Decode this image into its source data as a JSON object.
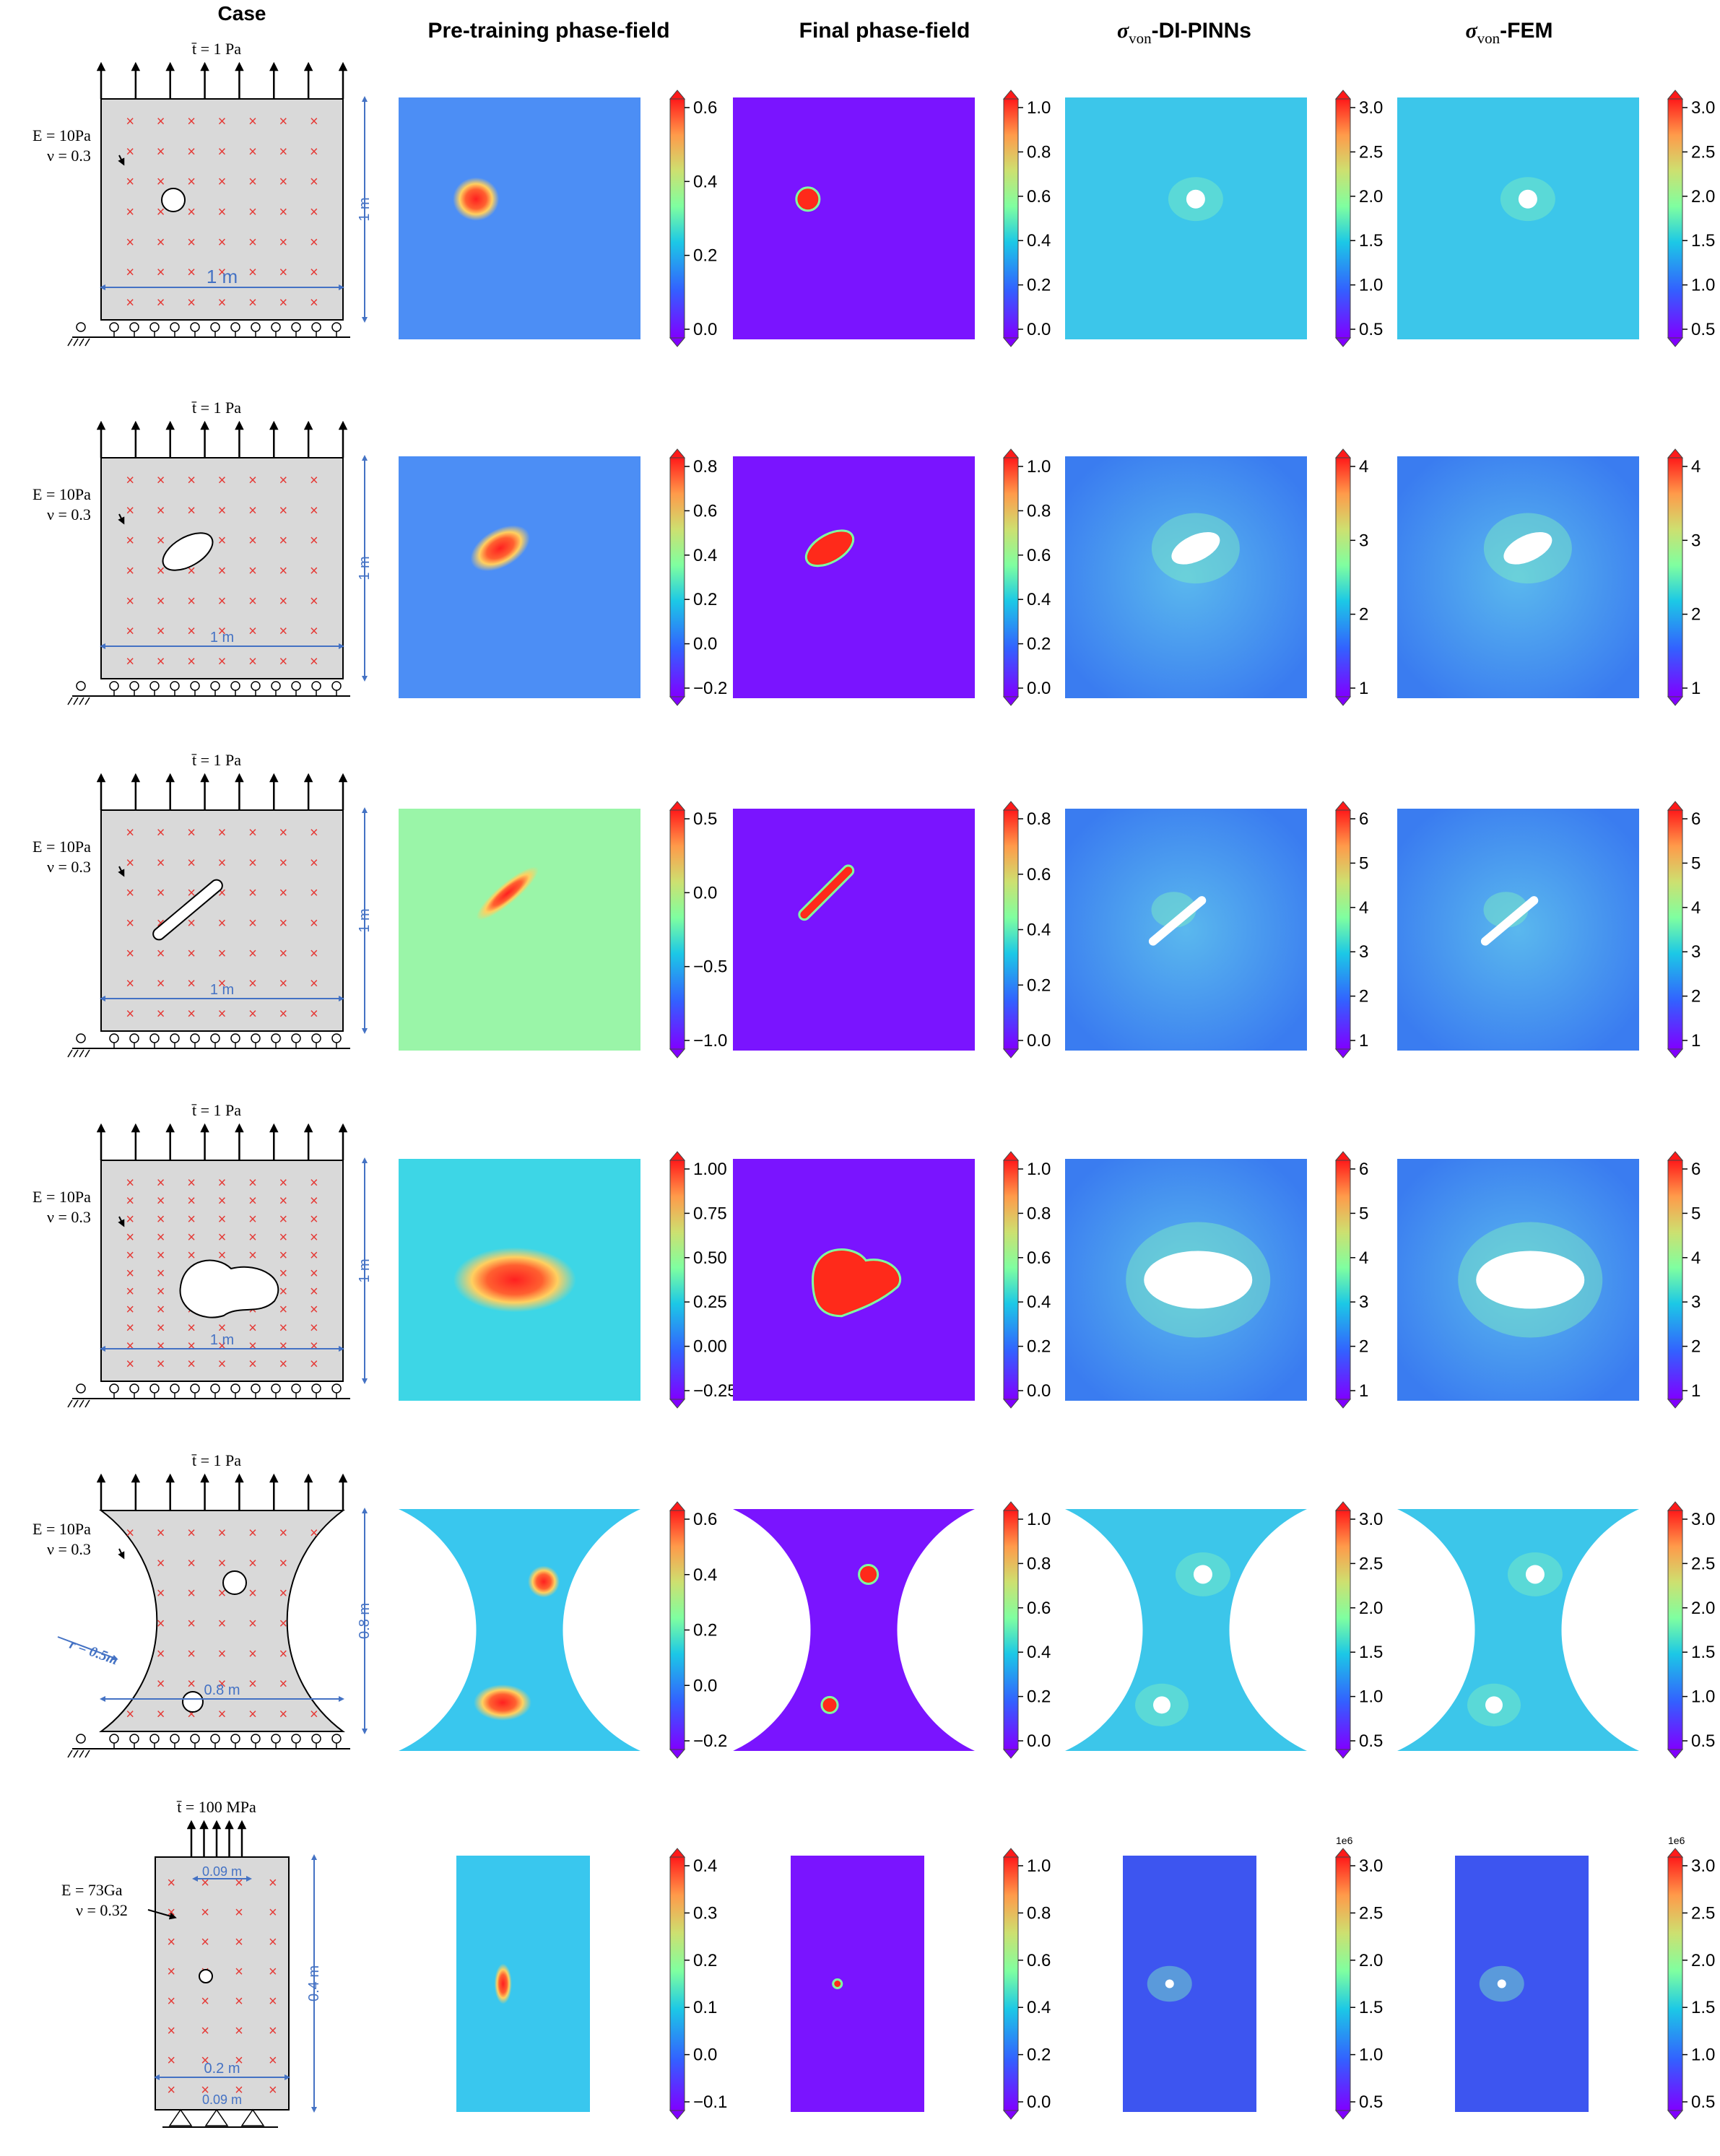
{
  "headers": [
    "Case",
    "Pre-training phase-field",
    "Final phase-field",
    "σvon-DI-PINNs",
    "σvon-FEM"
  ],
  "header_parts": {
    "sigma": "σ",
    "sub": "von",
    "dipinns_suffix": "-DI-PINNs",
    "fem_suffix": "-FEM"
  },
  "colors": {
    "primary": "#0d47a1",
    "accent": "#e53935",
    "panel_gray": "#d9d9d9",
    "dim_blue": "#4472c4"
  },
  "rows": [
    {
      "load": "t̄ = 1 Pa",
      "material": [
        "E = 10Pa",
        "ν = 0.3"
      ],
      "dims": {
        "width": "1 m",
        "height": "1 m"
      },
      "pretrain_ticks": [
        "0.6",
        "0.4",
        "0.2",
        "0.0"
      ],
      "final_ticks": [
        "1.0",
        "0.8",
        "0.6",
        "0.4",
        "0.2",
        "0.0"
      ],
      "dipinn_ticks": [
        "3.0",
        "2.5",
        "2.0",
        "1.5",
        "1.0",
        "0.5"
      ],
      "fem_ticks": [
        "3.0",
        "2.5",
        "2.0",
        "1.5",
        "1.0",
        "0.5"
      ]
    },
    {
      "load": "t̄ = 1 Pa",
      "material": [
        "E = 10Pa",
        "ν = 0.3"
      ],
      "dims": {
        "width": "1 m",
        "height": "1 m"
      },
      "pretrain_ticks": [
        "0.8",
        "0.6",
        "0.4",
        "0.2",
        "0.0",
        "−0.2"
      ],
      "final_ticks": [
        "1.0",
        "0.8",
        "0.6",
        "0.4",
        "0.2",
        "0.0"
      ],
      "dipinn_ticks": [
        "4",
        "3",
        "2",
        "1"
      ],
      "fem_ticks": [
        "4",
        "3",
        "2",
        "1"
      ]
    },
    {
      "load": "t̄ = 1 Pa",
      "material": [
        "E = 10Pa",
        "ν = 0.3"
      ],
      "dims": {
        "width": "1 m",
        "height": "1 m"
      },
      "pretrain_ticks": [
        "0.5",
        "0.0",
        "−0.5",
        "−1.0"
      ],
      "final_ticks": [
        "0.8",
        "0.6",
        "0.4",
        "0.2",
        "0.0"
      ],
      "dipinn_ticks": [
        "6",
        "5",
        "4",
        "3",
        "2",
        "1"
      ],
      "fem_ticks": [
        "6",
        "5",
        "4",
        "3",
        "2",
        "1"
      ]
    },
    {
      "load": "t̄ = 1 Pa",
      "material": [
        "E = 10Pa",
        "ν = 0.3"
      ],
      "dims": {
        "width": "1 m",
        "height": "1 m"
      },
      "pretrain_ticks": [
        "1.00",
        "0.75",
        "0.50",
        "0.25",
        "0.00",
        "−0.25"
      ],
      "final_ticks": [
        "1.0",
        "0.8",
        "0.6",
        "0.4",
        "0.2",
        "0.0"
      ],
      "dipinn_ticks": [
        "6",
        "5",
        "4",
        "3",
        "2",
        "1"
      ],
      "fem_ticks": [
        "6",
        "5",
        "4",
        "3",
        "2",
        "1"
      ]
    },
    {
      "load": "t̄ = 1 Pa",
      "material": [
        "E = 10Pa",
        "ν = 0.3"
      ],
      "dims": {
        "width": "0.8 m",
        "height": "0.8 m",
        "radius": "r = 0.5m"
      },
      "pretrain_ticks": [
        "0.6",
        "0.4",
        "0.2",
        "0.0",
        "−0.2"
      ],
      "final_ticks": [
        "1.0",
        "0.8",
        "0.6",
        "0.4",
        "0.2",
        "0.0"
      ],
      "dipinn_ticks": [
        "3.0",
        "2.5",
        "2.0",
        "1.5",
        "1.0",
        "0.5"
      ],
      "fem_ticks": [
        "3.0",
        "2.5",
        "2.0",
        "1.5",
        "1.0",
        "0.5"
      ]
    },
    {
      "load": "t̄ = 100 MPa",
      "material": [
        "E = 73Ga",
        "ν = 0.32"
      ],
      "dims": {
        "width": "0.2 m",
        "height": "0.4 m",
        "top_width": "0.09 m",
        "bottom_width": "0.09 m"
      },
      "pretrain_ticks": [
        "0.4",
        "0.3",
        "0.2",
        "0.1",
        "0.0",
        "−0.1"
      ],
      "final_ticks": [
        "1.0",
        "0.8",
        "0.6",
        "0.4",
        "0.2",
        "0.0"
      ],
      "dipinn_ticks": [
        "3.0",
        "2.5",
        "2.0",
        "1.5",
        "1.0",
        "0.5"
      ],
      "fem_ticks": [
        "3.0",
        "2.5",
        "2.0",
        "1.5",
        "1.0",
        "0.5"
      ],
      "scale_exp": "1e6"
    }
  ]
}
